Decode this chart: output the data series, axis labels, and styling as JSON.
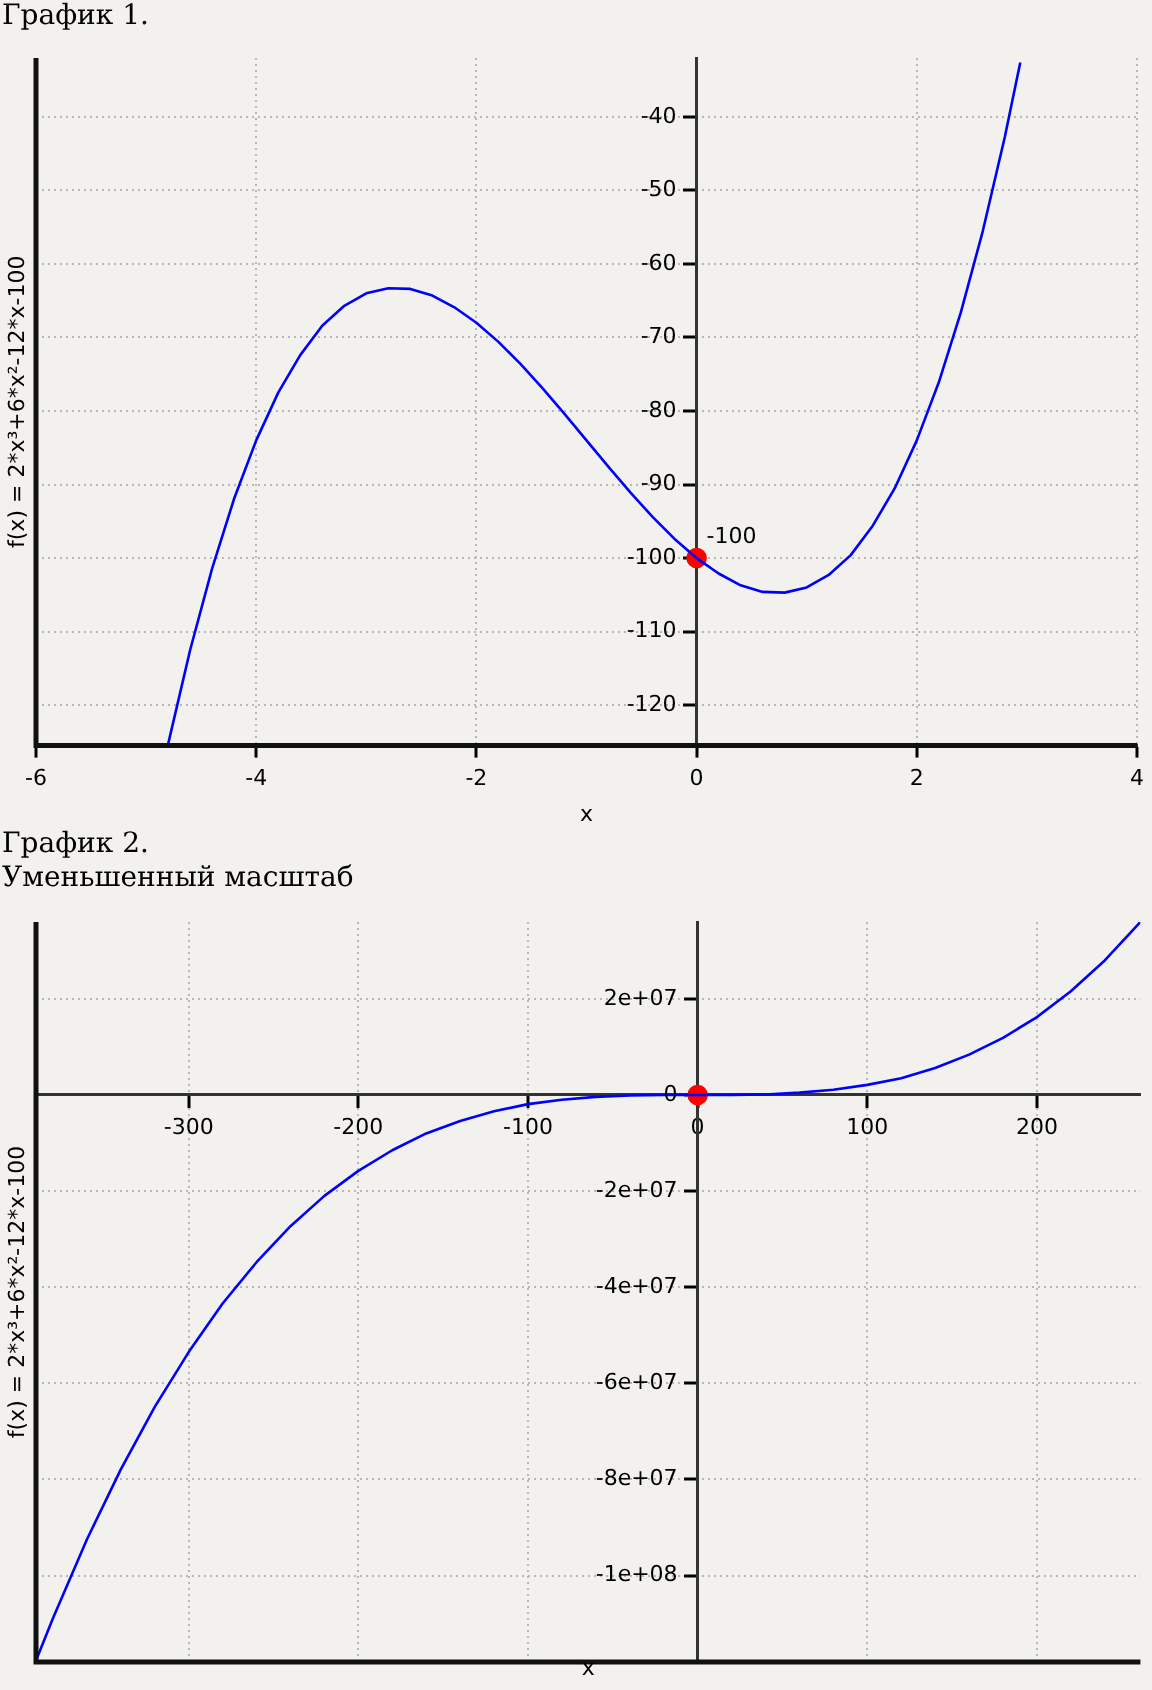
{
  "chart_data": [
    {
      "type": "line",
      "title": "График 1.",
      "xlabel": "x",
      "ylabel": "f(x) = 2*x³+6*x²-12*x-100",
      "xlim": [
        -6,
        4
      ],
      "ylim": [
        -125.5,
        -32
      ],
      "xticks": [
        -6,
        -4,
        -2,
        0,
        2,
        4
      ],
      "yticks": [
        -120,
        -110,
        -100,
        -90,
        -80,
        -70,
        -60,
        -50,
        -40
      ],
      "grid": true,
      "legend": false,
      "line_style": "solid",
      "series": [
        {
          "type": "line",
          "color": "#0000ff",
          "marker": "none",
          "x": [
            -4.8,
            -4.6,
            -4.4,
            -4.2,
            -4.0,
            -3.8,
            -3.6,
            -3.4,
            -3.2,
            -3.0,
            -2.8,
            -2.6,
            -2.4,
            -2.2,
            -2.0,
            -1.8,
            -1.6,
            -1.4,
            -1.2,
            -1.0,
            -0.8,
            -0.6,
            -0.4,
            -0.2,
            0,
            0.2,
            0.4,
            0.6,
            0.8,
            1.0,
            1.2,
            1.4,
            1.6,
            1.8,
            2.0,
            2.2,
            2.4,
            2.6,
            2.8,
            2.94
          ],
          "values": [
            -125.3,
            -112.5,
            -101.4,
            -91.9,
            -84,
            -77.5,
            -72.4,
            -68.4,
            -65.7,
            -64,
            -63.3,
            -63.4,
            -64.3,
            -65.9,
            -68,
            -70.6,
            -73.6,
            -76.9,
            -80.4,
            -84,
            -87.6,
            -91.1,
            -94.4,
            -97.4,
            -100,
            -102.1,
            -103.7,
            -104.6,
            -104.7,
            -104,
            -102.3,
            -99.6,
            -95.6,
            -90.5,
            -84,
            -76.1,
            -66.6,
            -55.5,
            -42.7,
            -32.6
          ]
        },
        {
          "type": "scatter",
          "color": "#ff0000",
          "marker": "circle",
          "x": [
            0
          ],
          "values": [
            -100
          ]
        }
      ],
      "annotations": [
        {
          "text": "-100",
          "x": 0,
          "y": -100
        }
      ]
    },
    {
      "type": "line",
      "title": "График 2.",
      "subtitle": "Уменьшенный масштаб",
      "xlabel": "x",
      "ylabel": "f(x) = 2*x³+6*x²-12*x-100",
      "xlim": [
        -390,
        261
      ],
      "ylim": [
        -118000000,
        36000000
      ],
      "xticks": [
        -300,
        -200,
        -100,
        0,
        100,
        200
      ],
      "yticks": [
        {
          "value": -100000000,
          "label": "-1e+08"
        },
        {
          "value": -80000000,
          "label": "-8e+07"
        },
        {
          "value": -60000000,
          "label": "-6e+07"
        },
        {
          "value": -40000000,
          "label": "-4e+07"
        },
        {
          "value": -20000000,
          "label": "-2e+07"
        },
        0,
        {
          "value": 20000000,
          "label": "2e+07"
        }
      ],
      "grid": true,
      "legend": false,
      "line_style": "solid",
      "series": [
        {
          "type": "line",
          "color": "#0000ff",
          "marker": "none",
          "x": [
            -390,
            -380,
            -360,
            -340,
            -320,
            -300,
            -280,
            -260,
            -240,
            -220,
            -200,
            -180,
            -160,
            -140,
            -120,
            -100,
            -80,
            -60,
            -40,
            -20,
            0,
            20,
            40,
            60,
            80,
            100,
            120,
            140,
            160,
            180,
            200,
            220,
            240,
            261
          ],
          "values": [
            -117700000,
            -108900000,
            -92500000,
            -77900000,
            -64900000,
            -53500000,
            -43400000,
            -34800000,
            -27300000,
            -21000000,
            -15800000,
            -11500000,
            -8000000,
            -5400000,
            -3400000,
            -1900000,
            -1000000,
            -400000,
            -100000,
            0,
            0,
            0,
            100000,
            500000,
            1100000,
            2100000,
            3500000,
            5600000,
            8400000,
            11900000,
            16200000,
            21600000,
            28000000,
            36000000
          ]
        },
        {
          "type": "scatter",
          "color": "#ff0000",
          "marker": "circle",
          "x": [
            0
          ],
          "values": [
            0
          ]
        }
      ]
    }
  ]
}
